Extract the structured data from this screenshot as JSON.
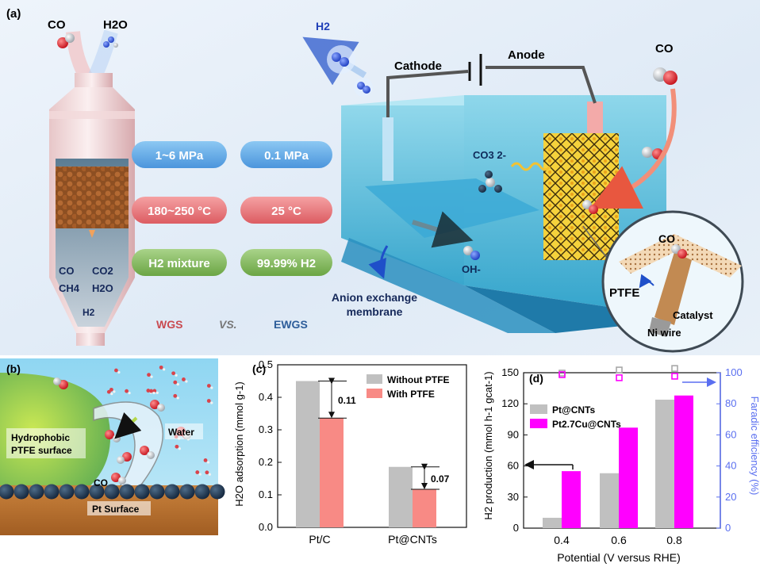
{
  "panel_a": {
    "label": "(a)",
    "reactor_inputs": [
      "CO",
      "H2O"
    ],
    "reactor_products": [
      "CO",
      "CO2",
      "CH4",
      "H2O",
      "H2"
    ],
    "product_h2": "H2",
    "pills_wgs": [
      "1~6 MPa",
      "180~250 °C",
      "H2 mixture"
    ],
    "pills_ewgs": [
      "0.1 MPa",
      "25 °C",
      "99.99% H2"
    ],
    "wgs": "WGS",
    "vs": "VS.",
    "ewgs": "EWGS",
    "cathode": "Cathode",
    "anode": "Anode",
    "h2_out": "H2",
    "co_in": "CO",
    "co3": "CO3 2-",
    "oh": "OH-",
    "membrane": [
      "Anion exchange",
      "membrane"
    ],
    "inset": {
      "co": "CO",
      "ptfe": "PTFE",
      "catalyst": "Catalyst",
      "wire": "Ni wire"
    },
    "colors": {
      "blue_pill": "#5aa8e6",
      "red_pill": "#e86f74",
      "green_pill": "#7fb458",
      "wgs": "#c94a50",
      "ewgs": "#2d5d9a"
    }
  },
  "panel_b": {
    "label": "(b)",
    "hydrophobic": [
      "Hydrophobic",
      "PTFE surface"
    ],
    "water": "Water",
    "co": "CO",
    "pt_surface": "Pt Surface"
  },
  "chart_data": [
    {
      "panel": "(c)",
      "type": "bar",
      "categories": [
        "Pt/C",
        "Pt@CNTs"
      ],
      "series": [
        {
          "name": "Without PTFE",
          "color": "#c0c0c0",
          "values": [
            0.45,
            0.186
          ]
        },
        {
          "name": "With PTFE",
          "color": "#f88a85",
          "values": [
            0.336,
            0.117
          ]
        }
      ],
      "annotations": [
        "0.11",
        "0.07"
      ],
      "ylabel": "H2O adsorption (mmol g-1)",
      "ylim": [
        0,
        0.5
      ],
      "yticks": [
        "0.0",
        "0.1",
        "0.2",
        "0.3",
        "0.4",
        "0.5"
      ],
      "legend_position": "top-right"
    },
    {
      "panel": "(d)",
      "type": "bar",
      "categories": [
        "0.4",
        "0.6",
        "0.8"
      ],
      "series": [
        {
          "name": "Pt@CNTs",
          "color": "#c0c0c0",
          "values": [
            10,
            53,
            124
          ]
        },
        {
          "name": "Pt2.7Cu@CNTs",
          "color": "#ff00ff",
          "values": [
            55,
            97,
            128
          ]
        }
      ],
      "faradaic_series": [
        {
          "name": "Pt@CNTs",
          "color": "#a8a8a8",
          "values": [
            100,
            102,
            103
          ]
        },
        {
          "name": "Pt2.7Cu@CNTs",
          "color": "#ff00ff",
          "values": [
            99,
            97,
            98
          ]
        }
      ],
      "xlabel": "Potential (V versus RHE)",
      "ylabel": "H2 production (mmol h-1 gcat-1)",
      "y2label": "Faradic efficiency (%)",
      "ylim": [
        0,
        150
      ],
      "yticks": [
        "0",
        "30",
        "60",
        "90",
        "120",
        "150"
      ],
      "y2lim": [
        0,
        100
      ],
      "y2ticks": [
        "0",
        "20",
        "40",
        "60",
        "80",
        "100"
      ],
      "legend_position": "top-left"
    }
  ]
}
